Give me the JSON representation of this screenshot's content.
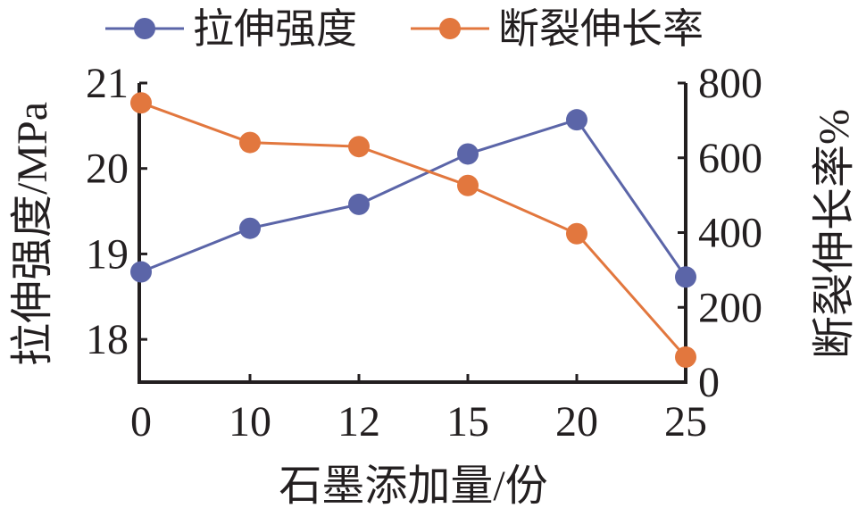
{
  "chart_data": {
    "type": "line",
    "categories": [
      "0",
      "10",
      "12",
      "15",
      "20",
      "25"
    ],
    "xlabel": "石墨添加量/份",
    "ylabel": "拉伸强度/MPa",
    "y2label": "断裂伸长率%",
    "ylim": [
      17.5,
      21
    ],
    "yticks": [
      18,
      19,
      20,
      21
    ],
    "y2lim": [
      0,
      800
    ],
    "y2ticks": [
      0,
      200,
      400,
      600,
      800
    ],
    "grid": false,
    "legend_position": "top",
    "series": [
      {
        "name": "拉伸强度",
        "axis": "left",
        "color": "#5b65a8",
        "values": [
          18.79,
          19.3,
          19.58,
          20.17,
          20.57,
          18.73
        ]
      },
      {
        "name": "断裂伸长率",
        "axis": "right",
        "color": "#e2773e",
        "values": [
          747,
          641,
          630,
          526,
          397,
          67
        ]
      }
    ]
  }
}
